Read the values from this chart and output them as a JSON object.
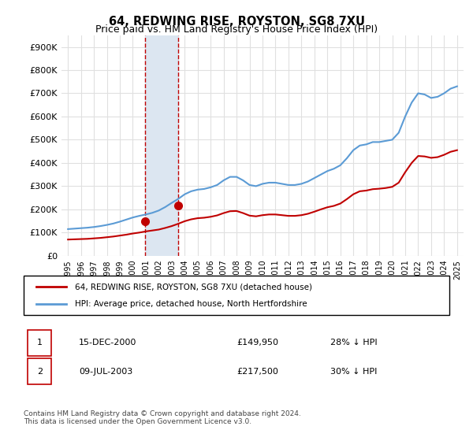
{
  "title": "64, REDWING RISE, ROYSTON, SG8 7XU",
  "subtitle": "Price paid vs. HM Land Registry's House Price Index (HPI)",
  "ylabel_ticks": [
    "£0",
    "£100K",
    "£200K",
    "£300K",
    "£400K",
    "£500K",
    "£600K",
    "£700K",
    "£800K",
    "£900K"
  ],
  "ytick_values": [
    0,
    100000,
    200000,
    300000,
    400000,
    500000,
    600000,
    700000,
    800000,
    900000
  ],
  "ylim": [
    0,
    950000
  ],
  "xlim_start": 1994.5,
  "xlim_end": 2025.5,
  "xtick_labels": [
    "1995",
    "1996",
    "1997",
    "1998",
    "1999",
    "2000",
    "2001",
    "2002",
    "2003",
    "2004",
    "2005",
    "2006",
    "2007",
    "2008",
    "2009",
    "2010",
    "2011",
    "2012",
    "2013",
    "2014",
    "2015",
    "2016",
    "2017",
    "2018",
    "2019",
    "2020",
    "2021",
    "2022",
    "2023",
    "2024",
    "2025"
  ],
  "xtick_values": [
    1995,
    1996,
    1997,
    1998,
    1999,
    2000,
    2001,
    2002,
    2003,
    2004,
    2005,
    2006,
    2007,
    2008,
    2009,
    2010,
    2011,
    2012,
    2013,
    2014,
    2015,
    2016,
    2017,
    2018,
    2019,
    2020,
    2021,
    2022,
    2023,
    2024,
    2025
  ],
  "hpi_x": [
    1995,
    1995.5,
    1996,
    1996.5,
    1997,
    1997.5,
    1998,
    1998.5,
    1999,
    1999.5,
    2000,
    2000.5,
    2001,
    2001.5,
    2002,
    2002.5,
    2003,
    2003.5,
    2004,
    2004.5,
    2005,
    2005.5,
    2006,
    2006.5,
    2007,
    2007.5,
    2008,
    2008.5,
    2009,
    2009.5,
    2010,
    2010.5,
    2011,
    2011.5,
    2012,
    2012.5,
    2013,
    2013.5,
    2014,
    2014.5,
    2015,
    2015.5,
    2016,
    2016.5,
    2017,
    2017.5,
    2018,
    2018.5,
    2019,
    2019.5,
    2020,
    2020.5,
    2021,
    2021.5,
    2022,
    2022.5,
    2023,
    2023.5,
    2024,
    2024.5,
    2025
  ],
  "hpi_y": [
    115000,
    117000,
    119000,
    121000,
    124000,
    128000,
    133000,
    139000,
    147000,
    156000,
    165000,
    172000,
    178000,
    185000,
    195000,
    210000,
    228000,
    245000,
    265000,
    278000,
    285000,
    288000,
    295000,
    305000,
    325000,
    340000,
    340000,
    325000,
    305000,
    300000,
    310000,
    315000,
    315000,
    310000,
    305000,
    305000,
    310000,
    320000,
    335000,
    350000,
    365000,
    375000,
    390000,
    420000,
    455000,
    475000,
    480000,
    490000,
    490000,
    495000,
    500000,
    530000,
    600000,
    660000,
    700000,
    695000,
    680000,
    685000,
    700000,
    720000,
    730000
  ],
  "price_x": [
    1995,
    1995.5,
    1996,
    1996.5,
    1997,
    1997.5,
    1998,
    1998.5,
    1999,
    1999.5,
    2000,
    2000.5,
    2001,
    2001.5,
    2002,
    2002.5,
    2003,
    2003.5,
    2004,
    2004.5,
    2005,
    2005.5,
    2006,
    2006.5,
    2007,
    2007.5,
    2008,
    2008.5,
    2009,
    2009.5,
    2010,
    2010.5,
    2011,
    2011.5,
    2012,
    2012.5,
    2013,
    2013.5,
    2014,
    2014.5,
    2015,
    2015.5,
    2016,
    2016.5,
    2017,
    2017.5,
    2018,
    2018.5,
    2019,
    2019.5,
    2020,
    2020.5,
    2021,
    2021.5,
    2022,
    2022.5,
    2023,
    2023.5,
    2024,
    2024.5,
    2025
  ],
  "price_y": [
    70000,
    71000,
    72000,
    73000,
    75000,
    77000,
    80000,
    83000,
    87000,
    91000,
    96000,
    100000,
    105000,
    109000,
    113000,
    120000,
    128000,
    138000,
    149000,
    157000,
    162000,
    164000,
    168000,
    174000,
    184000,
    192000,
    193000,
    184000,
    173000,
    170000,
    175000,
    178000,
    178000,
    175000,
    172000,
    172000,
    175000,
    181000,
    190000,
    200000,
    209000,
    215000,
    225000,
    244000,
    265000,
    278000,
    281000,
    287000,
    289000,
    292000,
    297000,
    315000,
    360000,
    400000,
    430000,
    428000,
    422000,
    425000,
    435000,
    448000,
    455000
  ],
  "purchase1_x": 2000.96,
  "purchase1_y": 149950,
  "purchase2_x": 2003.52,
  "purchase2_y": 217500,
  "vline1_x": 2000.96,
  "vline2_x": 2003.52,
  "shade_x1": 2000.96,
  "shade_x2": 2003.52,
  "hpi_color": "#5b9bd5",
  "price_color": "#c00000",
  "purchase_marker_color": "#c00000",
  "shade_color": "#dce6f1",
  "vline_color": "#c00000",
  "legend_label_price": "64, REDWING RISE, ROYSTON, SG8 7XU (detached house)",
  "legend_label_hpi": "HPI: Average price, detached house, North Hertfordshire",
  "table_row1": [
    "1",
    "15-DEC-2000",
    "£149,950",
    "28% ↓ HPI"
  ],
  "table_row2": [
    "2",
    "09-JUL-2003",
    "£217,500",
    "30% ↓ HPI"
  ],
  "footer": "Contains HM Land Registry data © Crown copyright and database right 2024.\nThis data is licensed under the Open Government Licence v3.0.",
  "bg_color": "#ffffff",
  "grid_color": "#e0e0e0"
}
